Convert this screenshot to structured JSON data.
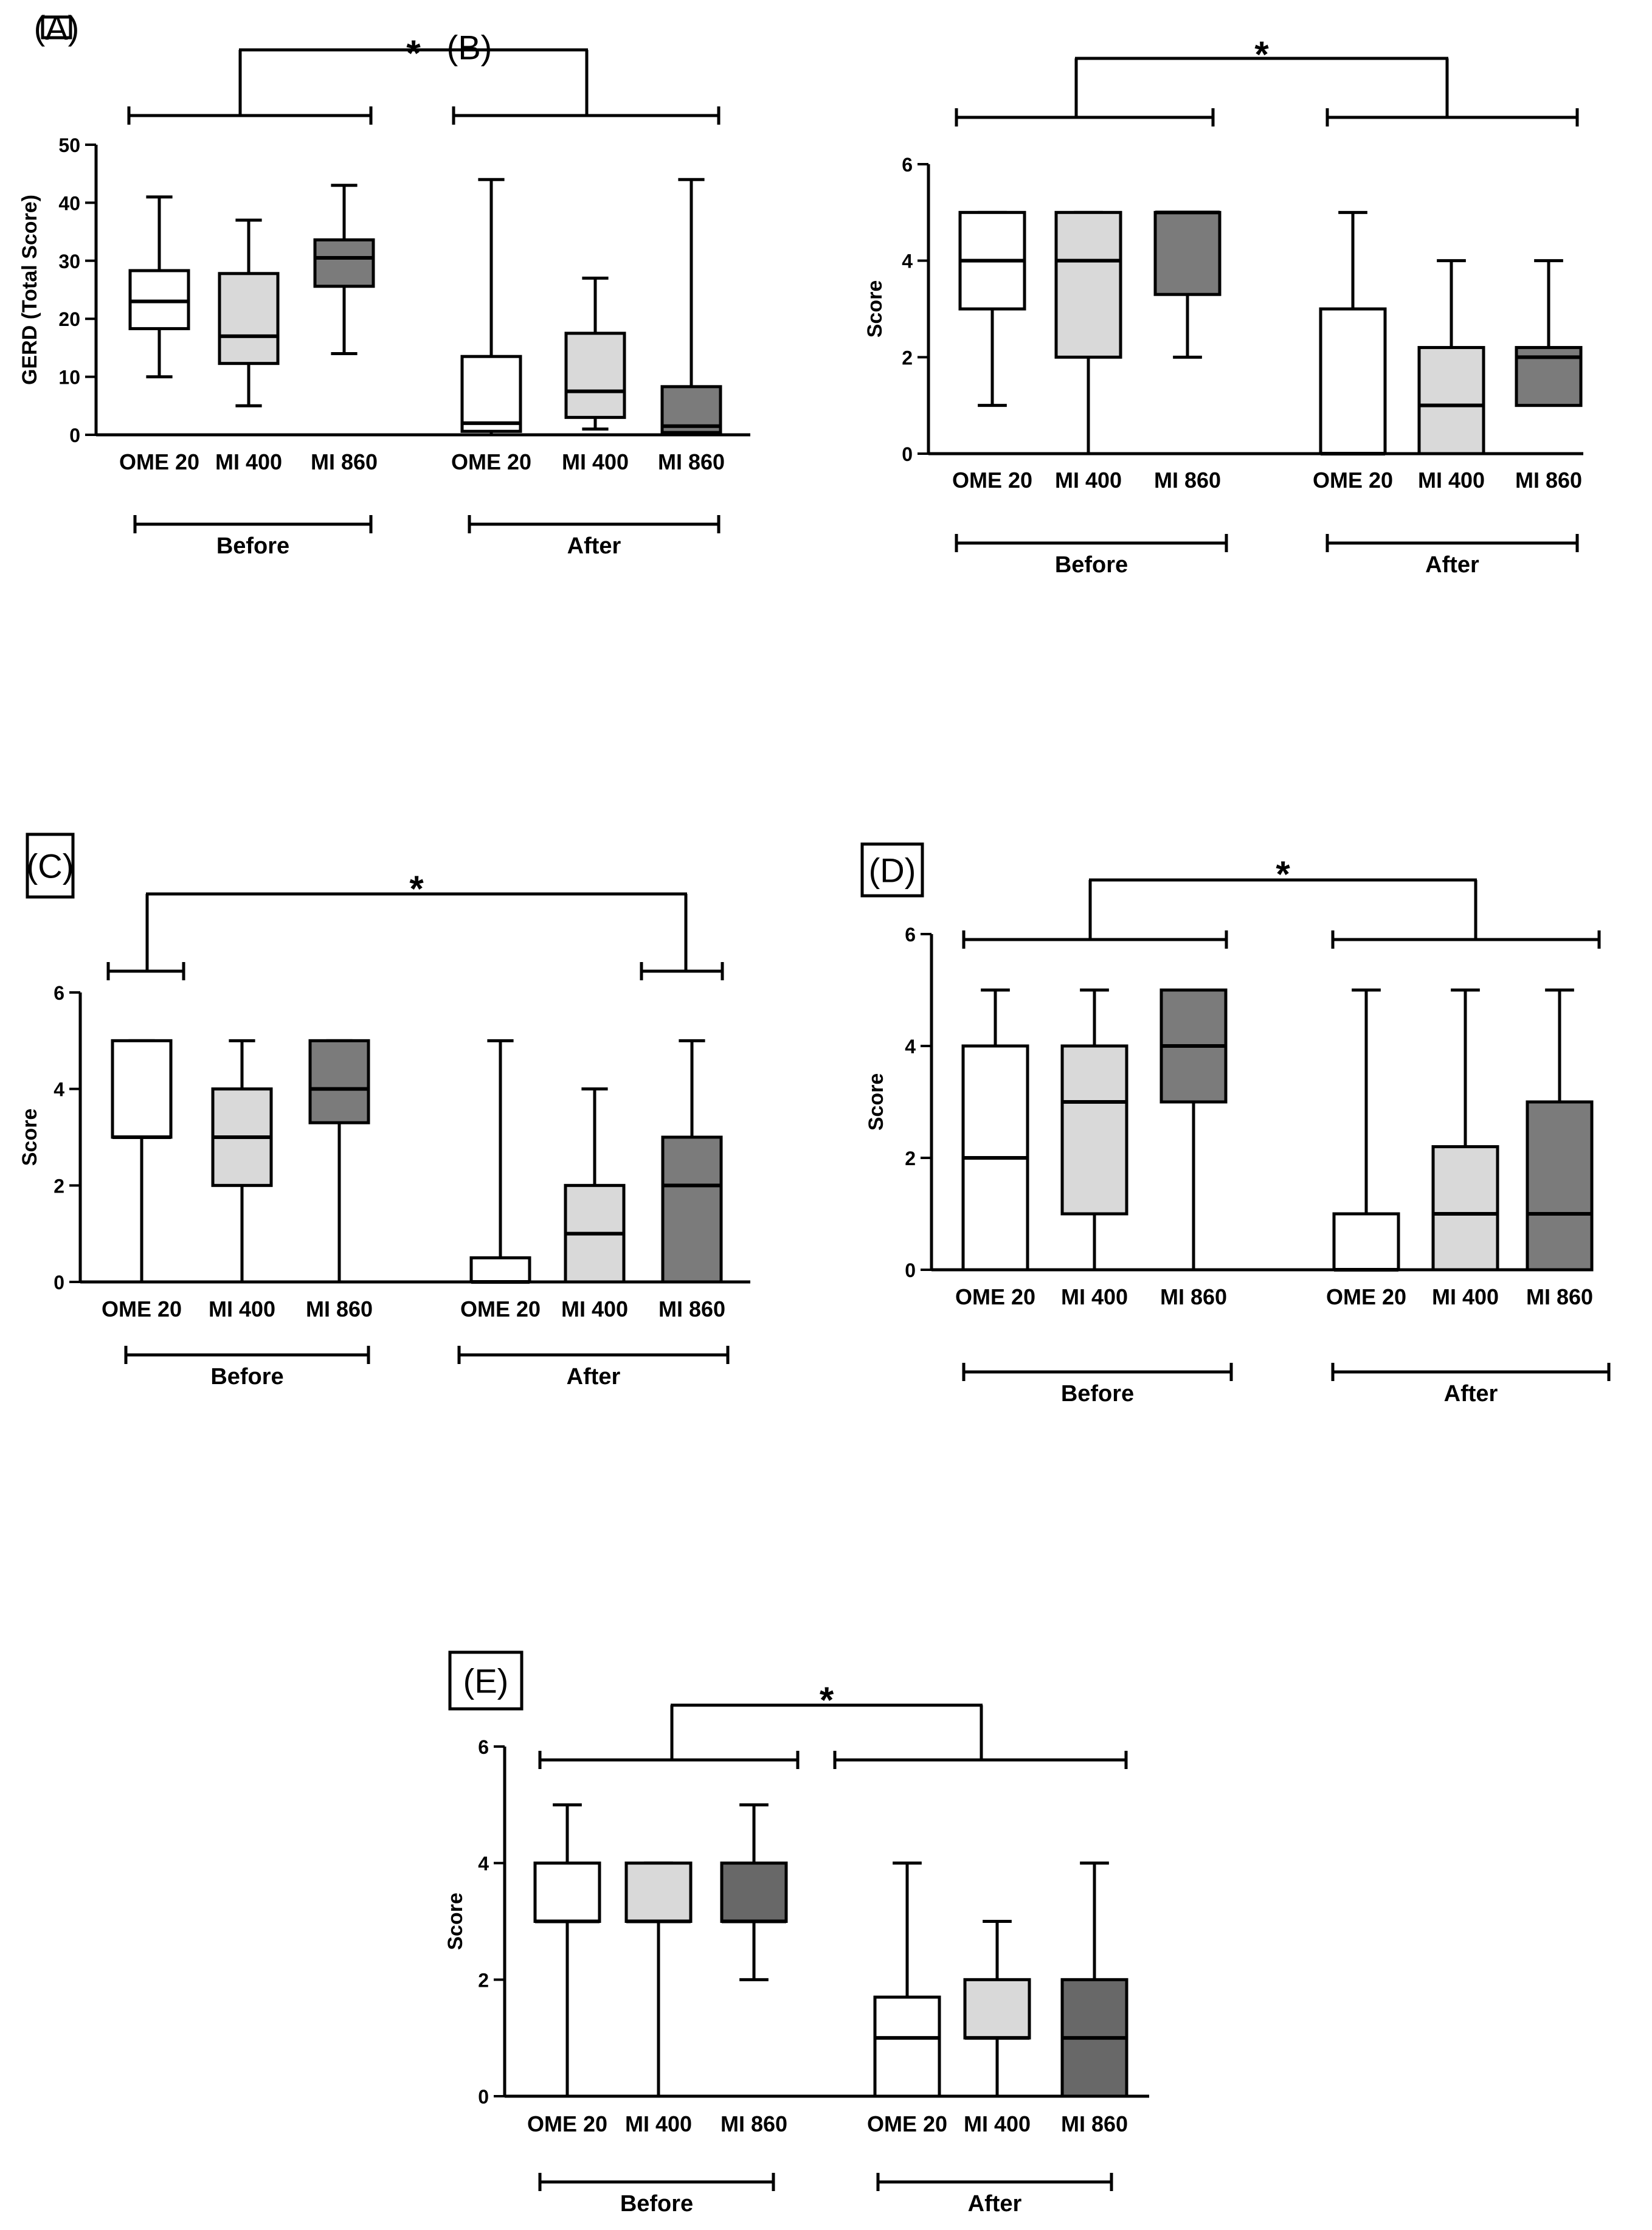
{
  "colors": {
    "ome20": "#ffffff",
    "mi400": "#d9d9d9",
    "mi860": "#7b7b7b",
    "mi860_dark": "#686868",
    "stroke": "#000000"
  },
  "chart_data": [
    {
      "id": "A",
      "type": "box",
      "panel_label": "(A)",
      "ylabel": "GERD (Total Score)",
      "ylim": [
        0,
        50
      ],
      "yticks": [
        0,
        10,
        20,
        30,
        40,
        50
      ],
      "categories": [
        "OME 20",
        "MI 400",
        "MI 860",
        "OME 20",
        "MI 400",
        "MI 860"
      ],
      "groups": [
        {
          "name": "Before",
          "label": "Before"
        },
        {
          "name": "After",
          "label": "After"
        }
      ],
      "significance": "*",
      "boxes": [
        {
          "group": "Before",
          "category": "OME 20",
          "fill": "ome20",
          "min": 10,
          "q1": 18.3,
          "median": 23,
          "q3": 28.3,
          "max": 41
        },
        {
          "group": "Before",
          "category": "MI 400",
          "fill": "mi400",
          "min": 5,
          "q1": 12.3,
          "median": 17,
          "q3": 27.8,
          "max": 37
        },
        {
          "group": "Before",
          "category": "MI 860",
          "fill": "mi860",
          "min": 14,
          "q1": 25.6,
          "median": 30.5,
          "q3": 33.6,
          "max": 43
        },
        {
          "group": "After",
          "category": "OME 20",
          "fill": "ome20",
          "min": 0,
          "q1": 0.6,
          "median": 2,
          "q3": 13.5,
          "max": 44
        },
        {
          "group": "After",
          "category": "MI 400",
          "fill": "mi400",
          "min": 1,
          "q1": 3,
          "median": 7.5,
          "q3": 17.5,
          "max": 27
        },
        {
          "group": "After",
          "category": "MI 860",
          "fill": "mi860",
          "min": 0,
          "q1": 0.4,
          "median": 1.5,
          "q3": 8.3,
          "max": 44
        }
      ]
    },
    {
      "id": "B",
      "type": "box",
      "panel_label": "(B)",
      "ylabel": "Score",
      "ylim": [
        0,
        6
      ],
      "yticks": [
        0,
        2,
        4,
        6
      ],
      "categories": [
        "OME 20",
        "MI 400",
        "MI 860",
        "OME 20",
        "MI 400",
        "MI 860"
      ],
      "groups": [
        {
          "name": "Before",
          "label": "Before"
        },
        {
          "name": "After",
          "label": "After"
        }
      ],
      "significance": "*",
      "boxes": [
        {
          "group": "Before",
          "category": "OME 20",
          "fill": "ome20",
          "min": 1,
          "q1": 3,
          "median": 4,
          "q3": 5,
          "max": 5
        },
        {
          "group": "Before",
          "category": "MI 400",
          "fill": "mi400",
          "min": 0,
          "q1": 2,
          "median": 4,
          "q3": 5,
          "max": 5
        },
        {
          "group": "Before",
          "category": "MI 860",
          "fill": "mi860",
          "min": 2,
          "q1": 3.3,
          "median": 5,
          "q3": 5,
          "max": 5
        },
        {
          "group": "After",
          "category": "OME 20",
          "fill": "ome20",
          "min": 0,
          "q1": 0,
          "median": 0,
          "q3": 3,
          "max": 5
        },
        {
          "group": "After",
          "category": "MI 400",
          "fill": "mi400",
          "min": 0,
          "q1": 0,
          "median": 1,
          "q3": 2.2,
          "max": 4
        },
        {
          "group": "After",
          "category": "MI 860",
          "fill": "mi860",
          "min": 1,
          "q1": 1,
          "median": 2,
          "q3": 2.2,
          "max": 4
        }
      ]
    },
    {
      "id": "C",
      "type": "box",
      "panel_label": "(C)",
      "ylabel": "Score",
      "ylim": [
        0,
        6
      ],
      "yticks": [
        0,
        2,
        4,
        6
      ],
      "categories": [
        "OME 20",
        "MI 400",
        "MI 860",
        "OME 20",
        "MI 400",
        "MI 860"
      ],
      "groups": [
        {
          "name": "Before",
          "label": "Before"
        },
        {
          "name": "After",
          "label": "After"
        }
      ],
      "significance": "*",
      "boxes": [
        {
          "group": "Before",
          "category": "OME 20",
          "fill": "ome20",
          "min": 0,
          "q1": 3,
          "median": 3,
          "q3": 5,
          "max": 5
        },
        {
          "group": "Before",
          "category": "MI 400",
          "fill": "mi400",
          "min": 0,
          "q1": 2,
          "median": 3,
          "q3": 4,
          "max": 5
        },
        {
          "group": "Before",
          "category": "MI 860",
          "fill": "mi860",
          "min": 0,
          "q1": 3.3,
          "median": 4,
          "q3": 5,
          "max": 5
        },
        {
          "group": "After",
          "category": "OME 20",
          "fill": "ome20",
          "min": 0,
          "q1": 0,
          "median": 0,
          "q3": 0.5,
          "max": 5
        },
        {
          "group": "After",
          "category": "MI 400",
          "fill": "mi400",
          "min": 0,
          "q1": 0,
          "median": 1,
          "q3": 2,
          "max": 4
        },
        {
          "group": "After",
          "category": "MI 860",
          "fill": "mi860",
          "min": 0,
          "q1": 0,
          "median": 2,
          "q3": 3,
          "max": 5
        }
      ]
    },
    {
      "id": "D",
      "type": "box",
      "panel_label": "(D)",
      "ylabel": "Score",
      "ylim": [
        0,
        6
      ],
      "yticks": [
        0,
        2,
        4,
        6
      ],
      "categories": [
        "OME 20",
        "MI 400",
        "MI 860",
        "OME 20",
        "MI 400",
        "MI 860"
      ],
      "groups": [
        {
          "name": "Before",
          "label": "Before"
        },
        {
          "name": "After",
          "label": "After"
        }
      ],
      "significance": "*",
      "boxes": [
        {
          "group": "Before",
          "category": "OME 20",
          "fill": "ome20",
          "min": 0,
          "q1": 0,
          "median": 2,
          "q3": 4,
          "max": 5
        },
        {
          "group": "Before",
          "category": "MI 400",
          "fill": "mi400",
          "min": 0,
          "q1": 1,
          "median": 3,
          "q3": 4,
          "max": 5
        },
        {
          "group": "Before",
          "category": "MI 860",
          "fill": "mi860",
          "min": 0,
          "q1": 3,
          "median": 4,
          "q3": 5,
          "max": 5
        },
        {
          "group": "After",
          "category": "OME 20",
          "fill": "ome20",
          "min": 0,
          "q1": 0,
          "median": 0,
          "q3": 1,
          "max": 5
        },
        {
          "group": "After",
          "category": "MI 400",
          "fill": "mi400",
          "min": 0,
          "q1": 0,
          "median": 1,
          "q3": 2.2,
          "max": 5
        },
        {
          "group": "After",
          "category": "MI 860",
          "fill": "mi860",
          "min": 0,
          "q1": 0,
          "median": 1,
          "q3": 3,
          "max": 5
        }
      ]
    },
    {
      "id": "E",
      "type": "box",
      "panel_label": "(E)",
      "ylabel": "Score",
      "ylim": [
        0,
        6
      ],
      "yticks": [
        0,
        2,
        4,
        6
      ],
      "categories": [
        "OME 20",
        "MI 400",
        "MI 860",
        "OME 20",
        "MI 400",
        "MI 860"
      ],
      "groups": [
        {
          "name": "Before",
          "label": "Before"
        },
        {
          "name": "After",
          "label": "After"
        }
      ],
      "significance": "*",
      "boxes": [
        {
          "group": "Before",
          "category": "OME 20",
          "fill": "ome20",
          "min": 0,
          "q1": 3,
          "median": 3,
          "q3": 4,
          "max": 5
        },
        {
          "group": "Before",
          "category": "MI 400",
          "fill": "mi400",
          "min": 0,
          "q1": 3,
          "median": 3,
          "q3": 4,
          "max": 4
        },
        {
          "group": "Before",
          "category": "MI 860",
          "fill": "mi860_dark",
          "min": 2,
          "q1": 3,
          "median": 3,
          "q3": 4,
          "max": 5
        },
        {
          "group": "After",
          "category": "OME 20",
          "fill": "ome20",
          "min": 0,
          "q1": 0,
          "median": 1,
          "q3": 1.7,
          "max": 4
        },
        {
          "group": "After",
          "category": "MI 400",
          "fill": "mi400",
          "min": 0,
          "q1": 1,
          "median": 1,
          "q3": 2,
          "max": 3
        },
        {
          "group": "After",
          "category": "MI 860",
          "fill": "mi860_dark",
          "min": 0,
          "q1": 0,
          "median": 1,
          "q3": 2,
          "max": 4
        }
      ]
    }
  ]
}
